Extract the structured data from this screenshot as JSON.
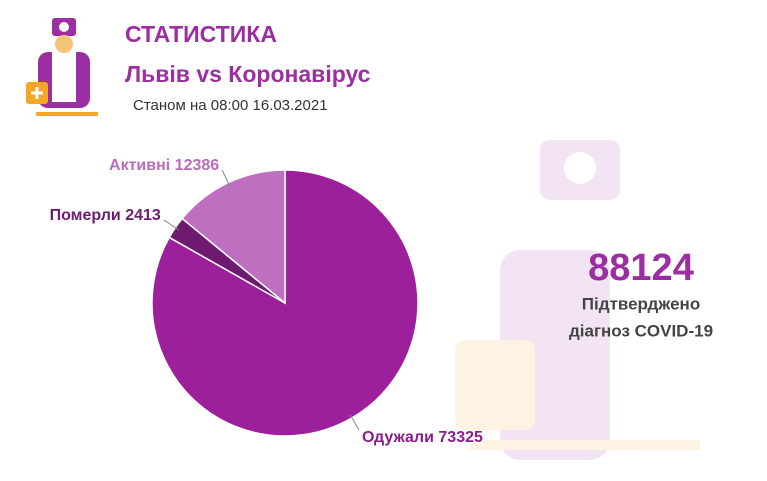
{
  "chart_data": {
    "type": "pie",
    "title": "СТАТИСТИКА",
    "subtitle": "Львів vs Коронавірус",
    "date": "Станом на 08:00 16.03.2021",
    "total": 88124,
    "total_label_1": "Підтверджено",
    "total_label_2": "діагноз COVID-19",
    "categories": [
      "Одужали",
      "Померли",
      "Активні"
    ],
    "values": [
      73325,
      2413,
      12386
    ],
    "colors": [
      "#9c1f9c",
      "#6e1a70",
      "#bf6fbf"
    ],
    "label_colors": [
      "#8a1d8e",
      "#6e1a70",
      "#b86cba"
    ]
  }
}
